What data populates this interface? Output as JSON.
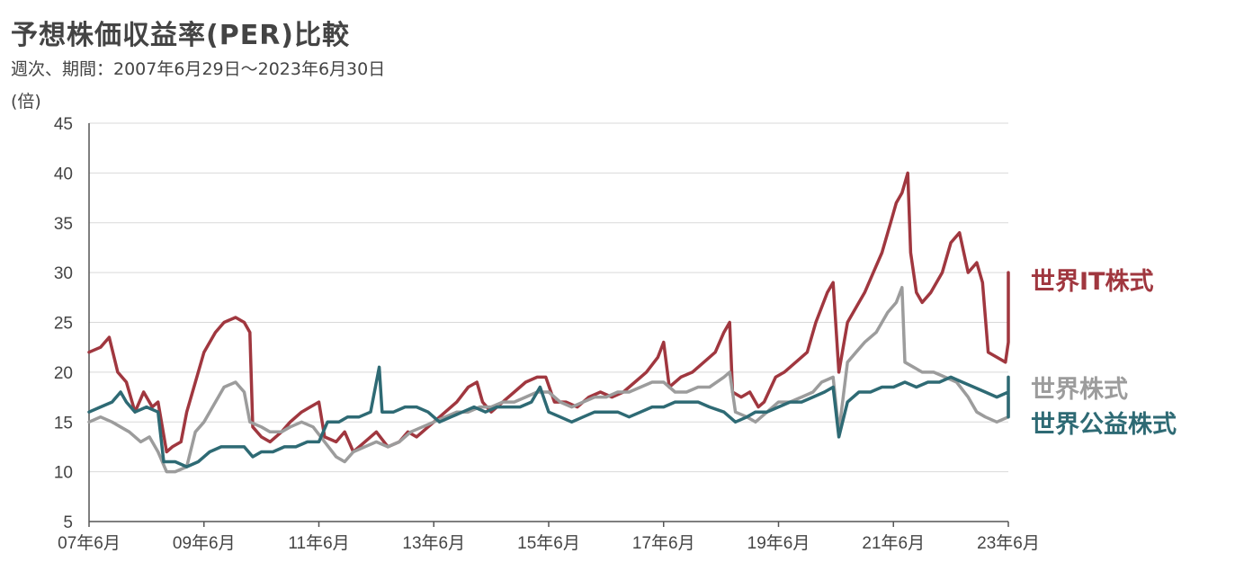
{
  "chart_data": {
    "type": "line",
    "title": "予想株価収益率(PER)比較",
    "subtitle": "週次、期間：2007年6月29日～2023年6月30日",
    "ylabel": "(倍)",
    "xlabel": "",
    "ylim": [
      5,
      45
    ],
    "yticks": [
      5,
      10,
      15,
      20,
      25,
      30,
      35,
      40,
      45
    ],
    "xlim": [
      2007.5,
      2023.5
    ],
    "xticks": [
      {
        "x": 2007.5,
        "label": "07年6月"
      },
      {
        "x": 2009.5,
        "label": "09年6月"
      },
      {
        "x": 2011.5,
        "label": "11年6月"
      },
      {
        "x": 2013.5,
        "label": "13年6月"
      },
      {
        "x": 2015.5,
        "label": "15年6月"
      },
      {
        "x": 2017.5,
        "label": "17年6月"
      },
      {
        "x": 2019.5,
        "label": "19年6月"
      },
      {
        "x": 2021.5,
        "label": "21年6月"
      },
      {
        "x": 2023.5,
        "label": "23年6月"
      }
    ],
    "grid": true,
    "series": [
      {
        "name": "世界IT株式",
        "color": "#A0373F",
        "points": [
          [
            2007.5,
            22
          ],
          [
            2007.7,
            22.5
          ],
          [
            2007.85,
            23.5
          ],
          [
            2008.0,
            20
          ],
          [
            2008.15,
            19
          ],
          [
            2008.3,
            16
          ],
          [
            2008.45,
            18
          ],
          [
            2008.6,
            16.5
          ],
          [
            2008.7,
            17
          ],
          [
            2008.85,
            12
          ],
          [
            2008.95,
            12.5
          ],
          [
            2009.1,
            13
          ],
          [
            2009.2,
            16
          ],
          [
            2009.35,
            19
          ],
          [
            2009.5,
            22
          ],
          [
            2009.7,
            24
          ],
          [
            2009.85,
            25
          ],
          [
            2010.05,
            25.5
          ],
          [
            2010.2,
            25
          ],
          [
            2010.3,
            24
          ],
          [
            2010.35,
            14.5
          ],
          [
            2010.5,
            13.5
          ],
          [
            2010.65,
            13
          ],
          [
            2010.85,
            14
          ],
          [
            2011.0,
            15
          ],
          [
            2011.2,
            16
          ],
          [
            2011.35,
            16.5
          ],
          [
            2011.5,
            17
          ],
          [
            2011.6,
            13.5
          ],
          [
            2011.8,
            13
          ],
          [
            2011.95,
            14
          ],
          [
            2012.1,
            12
          ],
          [
            2012.3,
            13
          ],
          [
            2012.5,
            14
          ],
          [
            2012.7,
            12.5
          ],
          [
            2012.9,
            13
          ],
          [
            2013.05,
            14
          ],
          [
            2013.2,
            13.5
          ],
          [
            2013.4,
            14.5
          ],
          [
            2013.5,
            15
          ],
          [
            2013.7,
            16
          ],
          [
            2013.9,
            17
          ],
          [
            2014.1,
            18.5
          ],
          [
            2014.25,
            19
          ],
          [
            2014.35,
            17
          ],
          [
            2014.5,
            16
          ],
          [
            2014.7,
            17
          ],
          [
            2014.9,
            18
          ],
          [
            2015.1,
            19
          ],
          [
            2015.3,
            19.5
          ],
          [
            2015.45,
            19.5
          ],
          [
            2015.6,
            17
          ],
          [
            2015.8,
            17
          ],
          [
            2016.0,
            16.5
          ],
          [
            2016.2,
            17.5
          ],
          [
            2016.4,
            18
          ],
          [
            2016.6,
            17.5
          ],
          [
            2016.8,
            18
          ],
          [
            2017.0,
            19
          ],
          [
            2017.2,
            20
          ],
          [
            2017.4,
            21.5
          ],
          [
            2017.5,
            23
          ],
          [
            2017.6,
            18.5
          ],
          [
            2017.8,
            19.5
          ],
          [
            2018.0,
            20
          ],
          [
            2018.2,
            21
          ],
          [
            2018.4,
            22
          ],
          [
            2018.55,
            24
          ],
          [
            2018.65,
            25
          ],
          [
            2018.7,
            18
          ],
          [
            2018.85,
            17.5
          ],
          [
            2019.0,
            18
          ],
          [
            2019.15,
            16.5
          ],
          [
            2019.25,
            17
          ],
          [
            2019.45,
            19.5
          ],
          [
            2019.6,
            20
          ],
          [
            2019.8,
            21
          ],
          [
            2020.0,
            22
          ],
          [
            2020.15,
            25
          ],
          [
            2020.25,
            26.5
          ],
          [
            2020.35,
            28
          ],
          [
            2020.45,
            29
          ],
          [
            2020.55,
            20
          ],
          [
            2020.7,
            25
          ],
          [
            2020.9,
            27
          ],
          [
            2021.0,
            28
          ],
          [
            2021.15,
            30
          ],
          [
            2021.3,
            32
          ],
          [
            2021.45,
            35
          ],
          [
            2021.55,
            37
          ],
          [
            2021.65,
            38
          ],
          [
            2021.75,
            40
          ],
          [
            2021.8,
            32
          ],
          [
            2021.9,
            28
          ],
          [
            2022.0,
            27
          ],
          [
            2022.15,
            28
          ],
          [
            2022.35,
            30
          ],
          [
            2022.5,
            33
          ],
          [
            2022.65,
            34
          ],
          [
            2022.8,
            30
          ],
          [
            2022.95,
            31
          ],
          [
            2023.05,
            29
          ],
          [
            2023.15,
            22
          ],
          [
            2023.3,
            21.5
          ],
          [
            2023.45,
            21
          ],
          [
            2023.55,
            23
          ],
          [
            2023.6,
            24
          ],
          [
            2023.8,
            23
          ],
          [
            2023.95,
            26
          ],
          [
            2024.05,
            25
          ],
          [
            2024.15,
            27
          ],
          [
            2024.25,
            30
          ]
        ]
      },
      {
        "name": "世界株式",
        "color": "#9C9C9C",
        "points": [
          [
            2007.5,
            15
          ],
          [
            2007.7,
            15.5
          ],
          [
            2007.9,
            15
          ],
          [
            2008.05,
            14.5
          ],
          [
            2008.2,
            14
          ],
          [
            2008.4,
            13
          ],
          [
            2008.55,
            13.5
          ],
          [
            2008.7,
            12
          ],
          [
            2008.85,
            10
          ],
          [
            2009.0,
            10
          ],
          [
            2009.2,
            10.5
          ],
          [
            2009.35,
            14
          ],
          [
            2009.5,
            15
          ],
          [
            2009.7,
            17
          ],
          [
            2009.85,
            18.5
          ],
          [
            2010.05,
            19
          ],
          [
            2010.2,
            18
          ],
          [
            2010.3,
            15
          ],
          [
            2010.5,
            14.5
          ],
          [
            2010.65,
            14
          ],
          [
            2010.85,
            14
          ],
          [
            2011.0,
            14.5
          ],
          [
            2011.2,
            15
          ],
          [
            2011.4,
            14.5
          ],
          [
            2011.6,
            13
          ],
          [
            2011.8,
            11.5
          ],
          [
            2011.95,
            11
          ],
          [
            2012.1,
            12
          ],
          [
            2012.3,
            12.5
          ],
          [
            2012.5,
            13
          ],
          [
            2012.7,
            12.5
          ],
          [
            2012.9,
            13
          ],
          [
            2013.1,
            14
          ],
          [
            2013.3,
            14.5
          ],
          [
            2013.5,
            15
          ],
          [
            2013.7,
            15.5
          ],
          [
            2013.9,
            16
          ],
          [
            2014.1,
            16
          ],
          [
            2014.3,
            16.5
          ],
          [
            2014.5,
            16.5
          ],
          [
            2014.7,
            17
          ],
          [
            2014.9,
            17
          ],
          [
            2015.1,
            17.5
          ],
          [
            2015.3,
            18
          ],
          [
            2015.5,
            18
          ],
          [
            2015.7,
            17
          ],
          [
            2015.9,
            16.5
          ],
          [
            2016.1,
            17
          ],
          [
            2016.3,
            17.5
          ],
          [
            2016.5,
            17.5
          ],
          [
            2016.7,
            18
          ],
          [
            2016.9,
            18
          ],
          [
            2017.1,
            18.5
          ],
          [
            2017.3,
            19
          ],
          [
            2017.5,
            19
          ],
          [
            2017.7,
            18
          ],
          [
            2017.9,
            18
          ],
          [
            2018.1,
            18.5
          ],
          [
            2018.3,
            18.5
          ],
          [
            2018.55,
            19.5
          ],
          [
            2018.65,
            20
          ],
          [
            2018.75,
            16
          ],
          [
            2018.95,
            15.5
          ],
          [
            2019.1,
            15
          ],
          [
            2019.3,
            16
          ],
          [
            2019.5,
            17
          ],
          [
            2019.7,
            17
          ],
          [
            2019.9,
            17.5
          ],
          [
            2020.1,
            18
          ],
          [
            2020.25,
            19
          ],
          [
            2020.45,
            19.5
          ],
          [
            2020.55,
            14
          ],
          [
            2020.7,
            21
          ],
          [
            2020.85,
            22
          ],
          [
            2021.0,
            23
          ],
          [
            2021.2,
            24
          ],
          [
            2021.4,
            26
          ],
          [
            2021.55,
            27
          ],
          [
            2021.65,
            28.5
          ],
          [
            2021.7,
            21
          ],
          [
            2021.85,
            20.5
          ],
          [
            2022.0,
            20
          ],
          [
            2022.2,
            20
          ],
          [
            2022.4,
            19.5
          ],
          [
            2022.6,
            19
          ],
          [
            2022.8,
            17.5
          ],
          [
            2022.95,
            16
          ],
          [
            2023.1,
            15.5
          ],
          [
            2023.3,
            15
          ],
          [
            2023.5,
            15.5
          ],
          [
            2023.7,
            16
          ],
          [
            2023.9,
            17
          ],
          [
            2024.05,
            17.5
          ],
          [
            2024.2,
            17.5
          ]
        ]
      },
      {
        "name": "世界公益株式",
        "color": "#2E6A74",
        "points": [
          [
            2007.5,
            16
          ],
          [
            2007.7,
            16.5
          ],
          [
            2007.9,
            17
          ],
          [
            2008.05,
            18
          ],
          [
            2008.15,
            17
          ],
          [
            2008.3,
            16
          ],
          [
            2008.5,
            16.5
          ],
          [
            2008.7,
            16
          ],
          [
            2008.8,
            11
          ],
          [
            2009.0,
            11
          ],
          [
            2009.2,
            10.5
          ],
          [
            2009.4,
            11
          ],
          [
            2009.6,
            12
          ],
          [
            2009.8,
            12.5
          ],
          [
            2010.0,
            12.5
          ],
          [
            2010.2,
            12.5
          ],
          [
            2010.35,
            11.5
          ],
          [
            2010.5,
            12
          ],
          [
            2010.7,
            12
          ],
          [
            2010.9,
            12.5
          ],
          [
            2011.1,
            12.5
          ],
          [
            2011.3,
            13
          ],
          [
            2011.5,
            13
          ],
          [
            2011.65,
            15
          ],
          [
            2011.85,
            15
          ],
          [
            2012.0,
            15.5
          ],
          [
            2012.2,
            15.5
          ],
          [
            2012.4,
            16
          ],
          [
            2012.55,
            20.5
          ],
          [
            2012.6,
            16
          ],
          [
            2012.8,
            16
          ],
          [
            2013.0,
            16.5
          ],
          [
            2013.2,
            16.5
          ],
          [
            2013.4,
            16
          ],
          [
            2013.6,
            15
          ],
          [
            2013.8,
            15.5
          ],
          [
            2014.0,
            16
          ],
          [
            2014.2,
            16.5
          ],
          [
            2014.4,
            16
          ],
          [
            2014.6,
            16.5
          ],
          [
            2014.8,
            16.5
          ],
          [
            2015.0,
            16.5
          ],
          [
            2015.2,
            17
          ],
          [
            2015.35,
            18.5
          ],
          [
            2015.5,
            16
          ],
          [
            2015.7,
            15.5
          ],
          [
            2015.9,
            15
          ],
          [
            2016.1,
            15.5
          ],
          [
            2016.3,
            16
          ],
          [
            2016.5,
            16
          ],
          [
            2016.7,
            16
          ],
          [
            2016.9,
            15.5
          ],
          [
            2017.1,
            16
          ],
          [
            2017.3,
            16.5
          ],
          [
            2017.5,
            16.5
          ],
          [
            2017.7,
            17
          ],
          [
            2017.9,
            17
          ],
          [
            2018.1,
            17
          ],
          [
            2018.3,
            16.5
          ],
          [
            2018.55,
            16
          ],
          [
            2018.75,
            15
          ],
          [
            2018.95,
            15.5
          ],
          [
            2019.1,
            16
          ],
          [
            2019.3,
            16
          ],
          [
            2019.5,
            16.5
          ],
          [
            2019.7,
            17
          ],
          [
            2019.9,
            17
          ],
          [
            2020.1,
            17.5
          ],
          [
            2020.3,
            18
          ],
          [
            2020.45,
            18.5
          ],
          [
            2020.55,
            13.5
          ],
          [
            2020.7,
            17
          ],
          [
            2020.9,
            18
          ],
          [
            2021.1,
            18
          ],
          [
            2021.3,
            18.5
          ],
          [
            2021.5,
            18.5
          ],
          [
            2021.7,
            19
          ],
          [
            2021.9,
            18.5
          ],
          [
            2022.1,
            19
          ],
          [
            2022.3,
            19
          ],
          [
            2022.5,
            19.5
          ],
          [
            2022.7,
            19
          ],
          [
            2022.9,
            18.5
          ],
          [
            2023.1,
            18
          ],
          [
            2023.3,
            17.5
          ],
          [
            2023.5,
            18
          ],
          [
            2023.7,
            17.5
          ],
          [
            2023.9,
            18
          ],
          [
            2024.0,
            19.5
          ],
          [
            2024.05,
            17
          ],
          [
            2024.15,
            16
          ],
          [
            2024.25,
            15.5
          ]
        ]
      }
    ]
  }
}
